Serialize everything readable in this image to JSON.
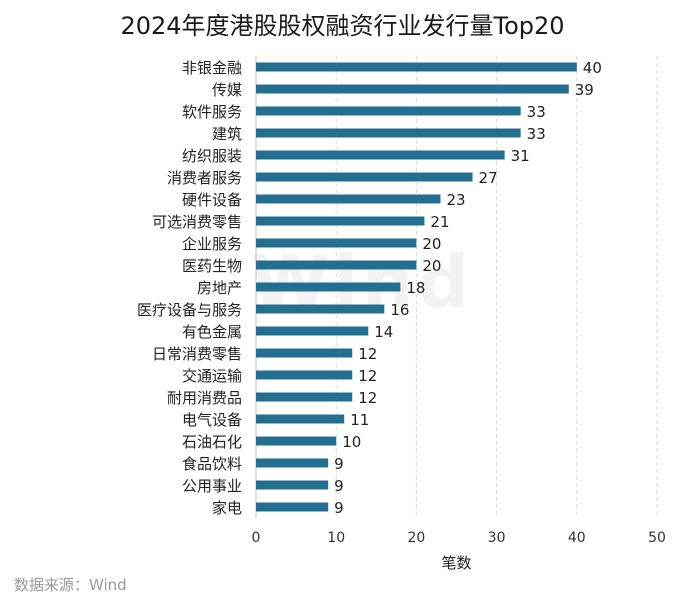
{
  "title": "2024年度港股股权融资行业发行量Top20",
  "source": "数据来源：Wind",
  "watermark": "Wind",
  "colors": {
    "bar": "#236f91",
    "grid": "#d9d9d9",
    "axis": "#666666"
  },
  "chart_data": {
    "type": "bar",
    "orientation": "horizontal",
    "title": "2024年度港股股权融资行业发行量Top20",
    "xlabel": "笔数",
    "ylabel": "",
    "xlim": [
      0,
      50
    ],
    "xticks": [
      0,
      10,
      20,
      30,
      40,
      50
    ],
    "grid": "vertical dashed",
    "data_labels": true,
    "categories": [
      "非银金融",
      "传媒",
      "软件服务",
      "建筑",
      "纺织服装",
      "消费者服务",
      "硬件设备",
      "可选消费零售",
      "企业服务",
      "医药生物",
      "房地产",
      "医疗设备与服务",
      "有色金属",
      "日常消费零售",
      "交通运输",
      "耐用消费品",
      "电气设备",
      "石油石化",
      "食品饮料",
      "公用事业",
      "家电"
    ],
    "values": [
      40,
      39,
      33,
      33,
      31,
      27,
      23,
      21,
      20,
      20,
      18,
      16,
      14,
      12,
      12,
      12,
      11,
      10,
      9,
      9,
      9
    ]
  }
}
